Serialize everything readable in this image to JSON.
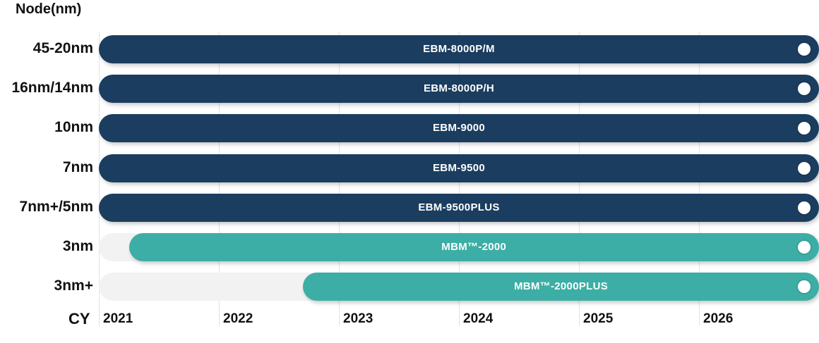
{
  "header": {
    "y_title": "Node(nm)",
    "x_title": "CY"
  },
  "colors": {
    "primary": "#1b3d5f",
    "accent": "#3caea5",
    "track": "#f2f2f2",
    "grid": "#e3e3e3"
  },
  "chart_data": {
    "type": "bar",
    "orientation": "horizontal-timeline",
    "x_ticks": [
      "2021",
      "2022",
      "2023",
      "2024",
      "2025",
      "2026"
    ],
    "xlim": [
      2021,
      2027
    ],
    "grid": true,
    "rows": [
      {
        "node": "45-20nm",
        "product": "EBM-8000P/M",
        "start": 2021.0,
        "end": 2027,
        "color": "#1b3d5f"
      },
      {
        "node": "16nm/14nm",
        "product": "EBM-8000P/H",
        "start": 2021.0,
        "end": 2027,
        "color": "#1b3d5f"
      },
      {
        "node": "10nm",
        "product": "EBM-9000",
        "start": 2021.0,
        "end": 2027,
        "color": "#1b3d5f"
      },
      {
        "node": "7nm",
        "product": "EBM-9500",
        "start": 2021.0,
        "end": 2027,
        "color": "#1b3d5f"
      },
      {
        "node": "7nm+/5nm",
        "product": "EBM-9500PLUS",
        "start": 2021.0,
        "end": 2027,
        "color": "#1b3d5f"
      },
      {
        "node": "3nm",
        "product": "MBM™-2000",
        "start": 2021.25,
        "end": 2027,
        "color": "#3caea5"
      },
      {
        "node": "3nm+",
        "product": "MBM™-2000PLUS",
        "start": 2022.7,
        "end": 2027,
        "color": "#3caea5"
      }
    ]
  }
}
